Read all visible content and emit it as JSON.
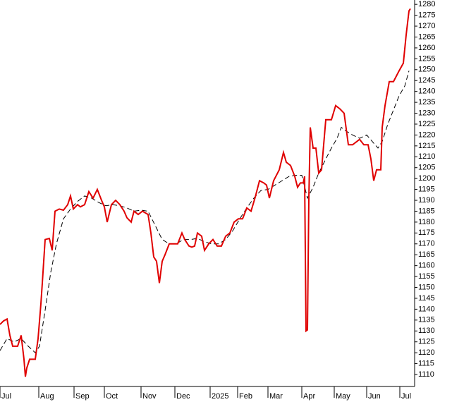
{
  "chart_data": {
    "type": "line",
    "xlim": [
      0,
      294
    ],
    "xticks": [
      {
        "value": 0,
        "label": "Jul"
      },
      {
        "value": 27.5,
        "label": "Aug"
      },
      {
        "value": 52.5,
        "label": "Sep"
      },
      {
        "value": 74,
        "label": "Oct"
      },
      {
        "value": 100,
        "label": "Nov"
      },
      {
        "value": 124,
        "label": "Dec"
      },
      {
        "value": 149,
        "label": "2025"
      },
      {
        "value": 168.5,
        "label": "Feb"
      },
      {
        "value": 190,
        "label": "Mar"
      },
      {
        "value": 214,
        "label": "Apr"
      },
      {
        "value": 237,
        "label": "May"
      },
      {
        "value": 260,
        "label": "Jun"
      },
      {
        "value": 283.5,
        "label": "Jul"
      }
    ],
    "ylim": [
      1104.5,
      1282
    ],
    "yticks": [
      1110,
      1115,
      1120,
      1125,
      1130,
      1135,
      1140,
      1145,
      1150,
      1155,
      1160,
      1165,
      1170,
      1175,
      1180,
      1185,
      1190,
      1195,
      1200,
      1205,
      1210,
      1215,
      1220,
      1225,
      1230,
      1235,
      1240,
      1245,
      1250,
      1255,
      1260,
      1265,
      1270,
      1275,
      1280
    ],
    "series": [
      {
        "color": "#e00000",
        "dash": false,
        "x": [
          0,
          2.5,
          5,
          7,
          9,
          12.5,
          15,
          17,
          18,
          19,
          21,
          25,
          27,
          29,
          30,
          32,
          35,
          37,
          39,
          42,
          45,
          48,
          50,
          52,
          55,
          57,
          60,
          63,
          66,
          69,
          72,
          74,
          76,
          79,
          82,
          85,
          88,
          90,
          93,
          95,
          98,
          101,
          105,
          107,
          109,
          111,
          113,
          115,
          117,
          120,
          123,
          126,
          129,
          131,
          134,
          136,
          138,
          140,
          143,
          145,
          148,
          151,
          154,
          157,
          160,
          163,
          166,
          169,
          172,
          175,
          178,
          181,
          184,
          187,
          189,
          191,
          194,
          198,
          201,
          203,
          206,
          209,
          211,
          213,
          215,
          216,
          217,
          218,
          219,
          220,
          222,
          224,
          226,
          228,
          231,
          235,
          238,
          241,
          244,
          247,
          250,
          253,
          255,
          258,
          261,
          263,
          265,
          267,
          270,
          270,
          271,
          273,
          276,
          279,
          283,
          286,
          288,
          290,
          291
        ],
        "values": [
          1133,
          1134.6,
          1135.5,
          1128,
          1123,
          1123,
          1128,
          1117,
          1109,
          1113,
          1117,
          1117,
          1126.5,
          1142.5,
          1152,
          1172,
          1172.5,
          1167,
          1185,
          1186,
          1185.5,
          1188,
          1192,
          1186,
          1188,
          1187,
          1188,
          1194,
          1191,
          1195,
          1190,
          1187,
          1180,
          1188,
          1190,
          1188,
          1185,
          1182,
          1180,
          1185,
          1183.5,
          1185,
          1183.5,
          1175,
          1164,
          1162,
          1152,
          1162,
          1165,
          1170,
          1170,
          1170,
          1175,
          1172,
          1169,
          1168.5,
          1169,
          1175,
          1173.5,
          1167,
          1170,
          1172,
          1169,
          1169,
          1173.5,
          1175,
          1180,
          1181.5,
          1181.5,
          1186.5,
          1185,
          1191.5,
          1199,
          1198,
          1197,
          1191,
          1199,
          1204,
          1212,
          1207.5,
          1206,
          1201,
          1196,
          1198,
          1198,
          1201,
          1130,
          1130.5,
          1191,
          1223.5,
          1214,
          1214,
          1202.5,
          1204,
          1227,
          1227,
          1233.5,
          1232,
          1230,
          1215.5,
          1215.5,
          1217,
          1218,
          1215.5,
          1215.5,
          1209,
          1199,
          1204,
          1204,
          1204,
          1223.5,
          1233.5,
          1244.5,
          1244.5,
          1249.5,
          1253,
          1266,
          1277,
          1278
        ]
      },
      {
        "color": "#000000",
        "dash": true,
        "x": [
          0,
          5,
          10,
          15,
          20,
          25,
          28,
          32,
          36,
          40,
          45,
          50,
          55,
          60,
          65,
          70,
          75,
          80,
          85,
          90,
          95,
          100,
          105,
          110,
          115,
          120,
          125,
          130,
          135,
          140,
          145,
          150,
          155,
          160,
          165,
          170,
          175,
          180,
          185,
          190,
          195,
          200,
          205,
          210,
          214,
          218,
          222,
          226,
          231,
          235,
          239,
          242,
          245,
          250,
          255,
          260,
          264,
          268,
          271,
          275,
          279,
          283,
          287,
          290
        ],
        "values": [
          1121,
          1126.5,
          1125,
          1126.5,
          1123,
          1120,
          1123,
          1139.5,
          1157,
          1170,
          1181.5,
          1186,
          1189.5,
          1192,
          1191,
          1189,
          1187.5,
          1188,
          1187.5,
          1186.5,
          1185,
          1185.5,
          1185,
          1178.5,
          1172,
          1170,
          1170,
          1172,
          1172,
          1172.5,
          1171,
          1170,
          1170,
          1172,
          1176,
          1181.5,
          1186.5,
          1191,
          1194.5,
          1195,
          1197,
          1199,
          1201,
          1201.5,
          1201.5,
          1191,
          1196,
          1202.5,
          1209,
          1214,
          1218.5,
          1223.5,
          1222,
          1220,
          1218.5,
          1220,
          1217,
          1214,
          1217,
          1225,
          1231.5,
          1238,
          1242.5,
          1249.5
        ]
      }
    ]
  }
}
